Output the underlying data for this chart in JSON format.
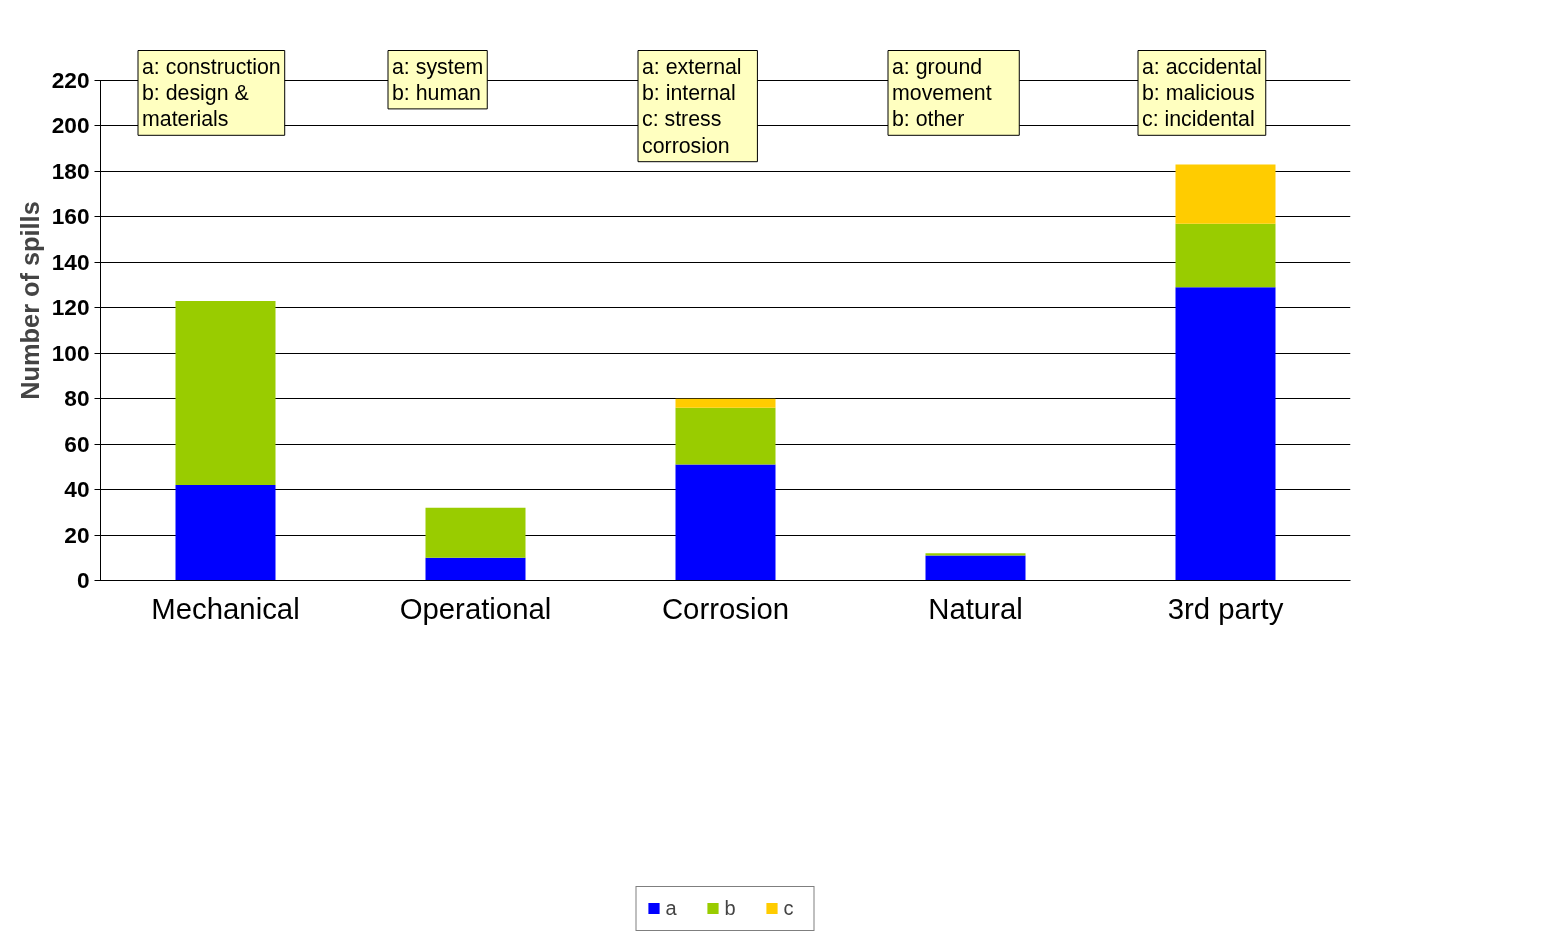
{
  "chart_data": {
    "type": "bar",
    "stacked": true,
    "ylabel": "Number of spills",
    "categories": [
      "Mechanical",
      "Operational",
      "Corrosion",
      "Natural",
      "3rd party"
    ],
    "series": [
      {
        "name": "a",
        "color": "#0000ff",
        "values": [
          42,
          10,
          51,
          11,
          129
        ]
      },
      {
        "name": "b",
        "color": "#99cc00",
        "values": [
          81,
          22,
          25,
          1,
          28
        ]
      },
      {
        "name": "c",
        "color": "#ffcc00",
        "values": [
          null,
          null,
          4,
          null,
          26
        ]
      }
    ],
    "ylim": [
      0,
      220
    ],
    "yticks": [
      0,
      20,
      40,
      60,
      80,
      100,
      120,
      140,
      160,
      180,
      200,
      220
    ],
    "grid": "y",
    "legend": "bottom",
    "annotations": [
      "a: construction\nb: design &\n    materials",
      "a: system\nb: human",
      "a: external\nb: internal\nc: stress\n    corrosion",
      "a: ground\n    movement\nb: other",
      "a: accidental\nb: malicious\nc: incidental"
    ]
  }
}
